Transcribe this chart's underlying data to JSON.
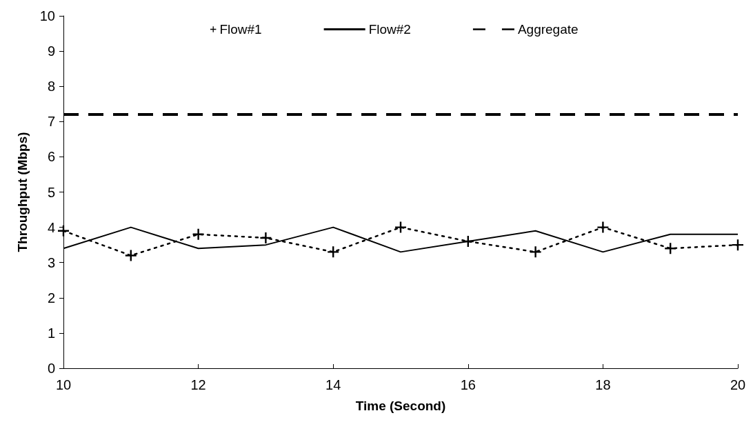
{
  "chart_data": {
    "type": "line",
    "xlabel": "Time (Second)",
    "ylabel": "Throughput (Mbps)",
    "xlim": [
      10,
      20
    ],
    "xticks": [
      10,
      12,
      14,
      16,
      18,
      20
    ],
    "ylim": [
      0,
      10
    ],
    "yticks": [
      0,
      1,
      2,
      3,
      4,
      5,
      6,
      7,
      8,
      9,
      10
    ],
    "grid": false,
    "legend": "top",
    "series": [
      {
        "name": "Flow#1",
        "color": "#000000",
        "marker": "cross",
        "line_style": "dotted",
        "x": [
          10,
          11,
          12,
          13,
          14,
          15,
          16,
          17,
          18,
          19,
          20
        ],
        "values": [
          3.9,
          3.2,
          3.8,
          3.7,
          3.3,
          4.0,
          3.6,
          3.3,
          4.0,
          3.4,
          3.5
        ]
      },
      {
        "name": "Flow#2",
        "color": "#000000",
        "marker": "none",
        "line_style": "solid",
        "x": [
          10,
          11,
          12,
          13,
          14,
          15,
          16,
          17,
          18,
          19,
          20
        ],
        "values": [
          3.4,
          4.0,
          3.4,
          3.5,
          4.0,
          3.3,
          3.6,
          3.9,
          3.3,
          3.8,
          3.8
        ]
      },
      {
        "name": "Aggregate",
        "color": "#000000",
        "marker": "none",
        "line_style": "dashed",
        "x": [
          10,
          20
        ],
        "values": [
          7.2,
          7.2
        ]
      }
    ]
  }
}
